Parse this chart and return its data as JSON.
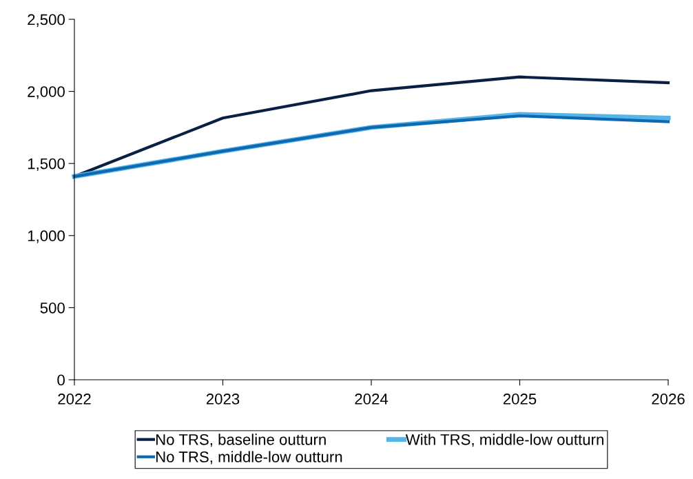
{
  "chart_data": {
    "type": "line",
    "x": [
      2022,
      2023,
      2024,
      2025,
      2026
    ],
    "xlim": [
      2022,
      2026
    ],
    "xticks": [
      2022,
      2023,
      2024,
      2025,
      2026
    ],
    "ylim": [
      0,
      2500
    ],
    "yticks": [
      0,
      {
        "value": 500,
        "label": "500"
      },
      {
        "value": 1000,
        "label": "1,000"
      },
      {
        "value": 1500,
        "label": "1,500"
      },
      {
        "value": 2000,
        "label": "2,000"
      },
      {
        "value": 2500,
        "label": "2,500"
      }
    ],
    "grid": false,
    "legend": "bottom",
    "marker": "none",
    "line_style": "solid",
    "series": [
      {
        "name": "No TRS, baseline outturn",
        "color": "#0b1f45",
        "values": [
          1410,
          1815,
          2005,
          2100,
          2060
        ]
      },
      {
        "name": "With TRS, middle-low outturn",
        "color": "#56b4e6",
        "values": [
          1410,
          1585,
          1750,
          1840,
          1815
        ]
      },
      {
        "name": "No TRS, middle-low outturn",
        "color": "#0e69b3",
        "values": [
          1410,
          1585,
          1750,
          1830,
          1790
        ]
      }
    ]
  }
}
